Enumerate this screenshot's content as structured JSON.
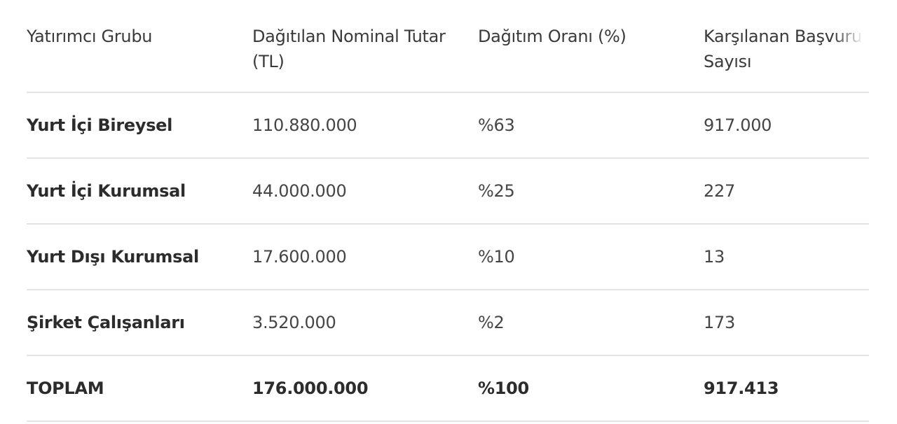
{
  "table": {
    "headers": [
      "Yatırımcı Grubu",
      "Dağıtılan Nominal Tutar (TL)",
      "Dağıtım Oranı (%)",
      "Karşılanan Başvuru Sayısı"
    ],
    "rows": [
      [
        "Yurt İçi Bireysel",
        "110.880.000",
        "%63",
        "917.000"
      ],
      [
        "Yurt İçi Kurumsal",
        "44.000.000",
        "%25",
        "227"
      ],
      [
        "Yurt Dışı Kurumsal",
        "17.600.000",
        "%10",
        "13"
      ],
      [
        "Şirket Çalışanları",
        "3.520.000",
        "%2",
        "173"
      ]
    ],
    "total": [
      "TOPLAM",
      "176.000.000",
      "%100",
      "917.413"
    ]
  }
}
